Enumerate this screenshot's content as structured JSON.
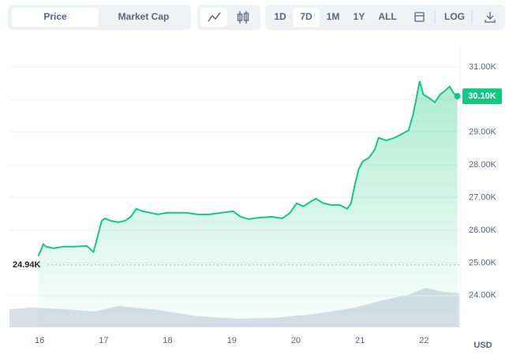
{
  "toolbar": {
    "tabs": [
      "Price",
      "Market Cap"
    ],
    "ranges": [
      "1D",
      "7D",
      "1M",
      "1Y",
      "ALL"
    ],
    "log": "LOG"
  },
  "chart_data": {
    "type": "line",
    "color": "#16c784",
    "x": [
      15.98,
      16.06,
      16.1,
      16.22,
      16.37,
      16.55,
      16.74,
      16.84,
      16.89,
      16.97,
      17.02,
      17.11,
      17.23,
      17.33,
      17.42,
      17.51,
      17.61,
      17.73,
      17.85,
      17.99,
      18.1,
      18.28,
      18.47,
      18.65,
      18.84,
      19.02,
      19.14,
      19.26,
      19.45,
      19.63,
      19.79,
      19.91,
      20.01,
      20.12,
      20.25,
      20.31,
      20.43,
      20.55,
      20.68,
      20.8,
      20.86,
      20.92,
      20.98,
      21.04,
      21.14,
      21.23,
      21.29,
      21.41,
      21.54,
      21.66,
      21.76,
      21.83,
      21.88,
      21.93,
      21.99,
      22.09,
      22.17,
      22.25,
      22.33,
      22.4,
      22.46,
      22.52
    ],
    "series": [
      {
        "values": [
          25207,
          25570,
          25500,
          25450,
          25500,
          25500,
          25520,
          25330,
          25690,
          26290,
          26365,
          26290,
          26245,
          26290,
          26410,
          26655,
          26580,
          26535,
          26485,
          26535,
          26535,
          26535,
          26485,
          26485,
          26535,
          26580,
          26410,
          26340,
          26390,
          26410,
          26365,
          26535,
          26825,
          26730,
          26900,
          26970,
          26825,
          26775,
          26775,
          26655,
          26825,
          27380,
          27860,
          28100,
          28220,
          28465,
          28830,
          28750,
          28830,
          28950,
          29070,
          29550,
          30035,
          30565,
          30155,
          30035,
          29915,
          30155,
          30275,
          30400,
          30200,
          30105
        ]
      }
    ],
    "xlim": [
      15.53,
      22.55
    ],
    "xticks": [
      16,
      17,
      18,
      19,
      20,
      21,
      22
    ],
    "ylim": [
      23030,
      31600
    ],
    "yticks": [
      {
        "value": 24000,
        "label": "24.00K"
      },
      {
        "value": 25000,
        "label": "25.00K"
      },
      {
        "value": 26000,
        "label": "26.00K"
      },
      {
        "value": 27000,
        "label": "27.00K"
      },
      {
        "value": 28000,
        "label": "28.00K"
      },
      {
        "value": 29000,
        "label": "29.00K"
      },
      {
        "value": 30000,
        "label": "30.00K"
      },
      {
        "value": 31000,
        "label": "31.00K"
      }
    ],
    "grid": true,
    "annotations": [
      {
        "value": 24940,
        "label": "24.94K"
      },
      {
        "value": 30100,
        "label": "30.10K"
      }
    ],
    "currency": "USD"
  }
}
